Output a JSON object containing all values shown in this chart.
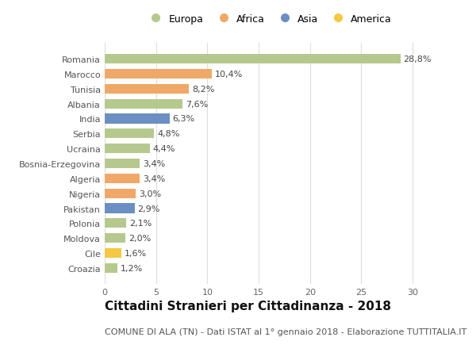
{
  "categories": [
    "Croazia",
    "Cile",
    "Moldova",
    "Polonia",
    "Pakistan",
    "Nigeria",
    "Algeria",
    "Bosnia-Erzegovina",
    "Ucraina",
    "Serbia",
    "India",
    "Albania",
    "Tunisia",
    "Marocco",
    "Romania"
  ],
  "values": [
    1.2,
    1.6,
    2.0,
    2.1,
    2.9,
    3.0,
    3.4,
    3.4,
    4.4,
    4.8,
    6.3,
    7.6,
    8.2,
    10.4,
    28.8
  ],
  "labels": [
    "1,2%",
    "1,6%",
    "2,0%",
    "2,1%",
    "2,9%",
    "3,0%",
    "3,4%",
    "3,4%",
    "4,4%",
    "4,8%",
    "6,3%",
    "7,6%",
    "8,2%",
    "10,4%",
    "28,8%"
  ],
  "continents": [
    "Europa",
    "America",
    "Europa",
    "Europa",
    "Asia",
    "Africa",
    "Africa",
    "Europa",
    "Europa",
    "Europa",
    "Asia",
    "Europa",
    "Africa",
    "Africa",
    "Europa"
  ],
  "colors": {
    "Europa": "#b5c98e",
    "Africa": "#f0a868",
    "Asia": "#6b8fc2",
    "America": "#f5c842"
  },
  "legend_order": [
    "Europa",
    "Africa",
    "Asia",
    "America"
  ],
  "xlim": [
    0,
    32
  ],
  "xticks": [
    0,
    5,
    10,
    15,
    20,
    25,
    30
  ],
  "title": "Cittadini Stranieri per Cittadinanza - 2018",
  "subtitle": "COMUNE DI ALA (TN) - Dati ISTAT al 1° gennaio 2018 - Elaborazione TUTTITALIA.IT",
  "title_fontsize": 11,
  "subtitle_fontsize": 8,
  "bg_color": "#ffffff",
  "grid_color": "#dddddd",
  "bar_height": 0.65,
  "label_fontsize": 8,
  "ytick_fontsize": 8,
  "xtick_fontsize": 8
}
